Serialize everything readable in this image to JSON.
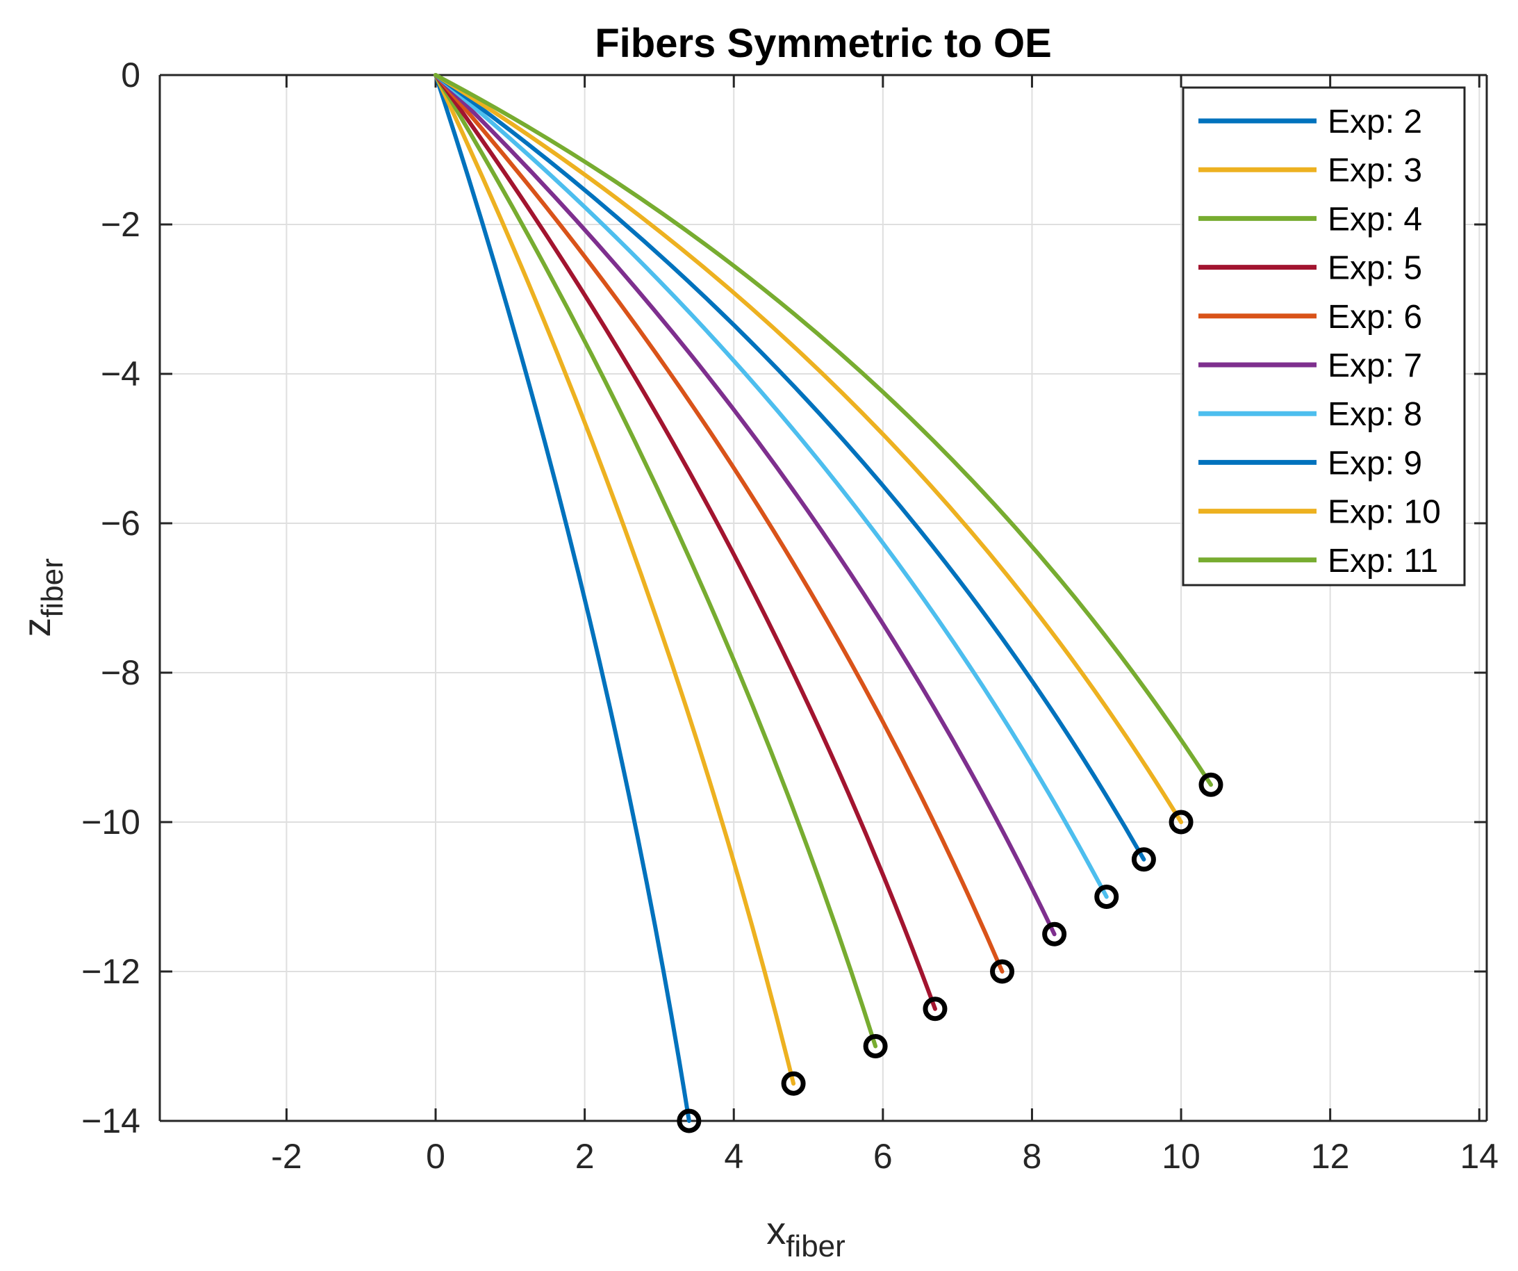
{
  "chart_data": {
    "type": "line",
    "title": "Fibers Symmetric to OE",
    "xlabel": {
      "base": "x",
      "subscript": "fiber"
    },
    "ylabel": {
      "base": "z",
      "subscript": "fiber"
    },
    "xlim": [
      -3.7,
      14.1
    ],
    "ylim": [
      -14,
      0
    ],
    "xticks": [
      -2,
      0,
      2,
      4,
      6,
      8,
      10,
      12,
      14
    ],
    "xtick_labels": [
      "-2",
      "0",
      "2",
      "4",
      "6",
      "8",
      "10",
      "12",
      "14"
    ],
    "yticks": [
      0,
      -2,
      -4,
      -6,
      -8,
      -10,
      -12,
      -14
    ],
    "ytick_labels": [
      "0",
      "−2",
      "−4",
      "−6",
      "−8",
      "−10",
      "−12",
      "−14"
    ],
    "grid": true,
    "legend_position": "top-right",
    "series": [
      {
        "name": "Exp: 2",
        "color": "#0072BD",
        "start": [
          0,
          0
        ],
        "end": [
          3.4,
          -14.0
        ],
        "curvature": 0.04
      },
      {
        "name": "Exp: 3",
        "color": "#EDB120",
        "start": [
          0,
          0
        ],
        "end": [
          4.8,
          -13.5
        ],
        "curvature": 0.05
      },
      {
        "name": "Exp: 4",
        "color": "#77AC30",
        "start": [
          0,
          0
        ],
        "end": [
          5.9,
          -13.0
        ],
        "curvature": 0.06
      },
      {
        "name": "Exp: 5",
        "color": "#A2142F",
        "start": [
          0,
          0
        ],
        "end": [
          6.7,
          -12.5
        ],
        "curvature": 0.07
      },
      {
        "name": "Exp: 6",
        "color": "#D95319",
        "start": [
          0,
          0
        ],
        "end": [
          7.6,
          -12.0
        ],
        "curvature": 0.08
      },
      {
        "name": "Exp: 7",
        "color": "#7E2F8E",
        "start": [
          0,
          0
        ],
        "end": [
          8.3,
          -11.5
        ],
        "curvature": 0.09
      },
      {
        "name": "Exp: 8",
        "color": "#4DBEEE",
        "start": [
          0,
          0
        ],
        "end": [
          9.0,
          -11.0
        ],
        "curvature": 0.1
      },
      {
        "name": "Exp: 9",
        "color": "#0072BD",
        "start": [
          0,
          0
        ],
        "end": [
          9.5,
          -10.5
        ],
        "curvature": 0.11
      },
      {
        "name": "Exp: 10",
        "color": "#EDB120",
        "start": [
          0,
          0
        ],
        "end": [
          10.0,
          -10.0
        ],
        "curvature": 0.12
      },
      {
        "name": "Exp: 11",
        "color": "#77AC30",
        "start": [
          0,
          0
        ],
        "end": [
          10.4,
          -9.5
        ],
        "curvature": 0.13
      }
    ],
    "end_markers": {
      "shape": "circle",
      "color": "#000000"
    }
  }
}
